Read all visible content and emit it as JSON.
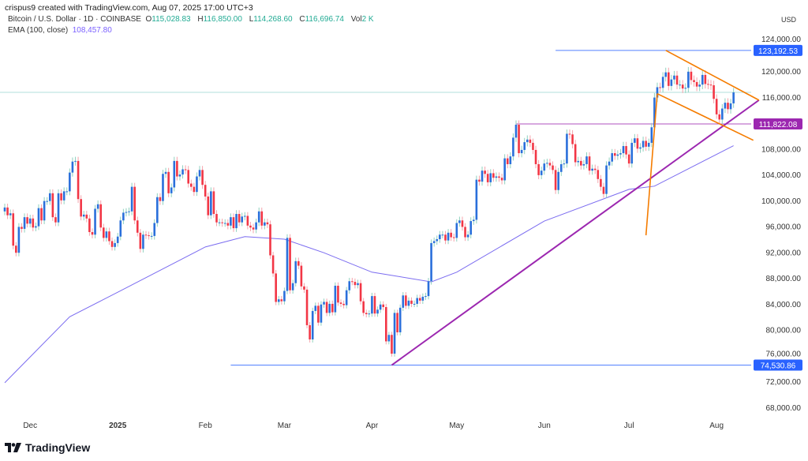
{
  "header": {
    "credit": "crispus9 created with TradingView.com, Aug 07, 2025 17:00 UTC+3",
    "symbol": "Bitcoin / U.S. Dollar · 1D · COINBASE",
    "open_label": "O",
    "open": "115,028.83",
    "high_label": "H",
    "high": "116,850.00",
    "low_label": "L",
    "low": "114,268.60",
    "close_label": "C",
    "close": "116,696.74",
    "vol_label": "Vol",
    "vol": "2 K",
    "ema_label": "EMA (100, close)",
    "ema_value": "108,457.80",
    "currency": "USD"
  },
  "logo": {
    "text": "TradingView"
  },
  "colors": {
    "up": "#2a6fdb",
    "down": "#f23645",
    "ema": "#7b6cf0",
    "trend": "#9c27b0",
    "pennant": "#f57c00",
    "level_blue": "#2962ff",
    "level_purple": "#9c27b0"
  },
  "chart_data": {
    "type": "candlestick",
    "start_date": "2024-11-22",
    "interval": "1D",
    "first_open": 98.3,
    "closes_k_usd": [
      98.9,
      97.7,
      98.0,
      93.0,
      91.9,
      95.9,
      95.6,
      97.4,
      96.4,
      97.2,
      95.8,
      96.0,
      98.8,
      96.9,
      99.9,
      99.9,
      101.1,
      97.4,
      96.6,
      101.1,
      100.0,
      101.4,
      101.4,
      104.3,
      106.0,
      106.1,
      100.2,
      97.5,
      97.8,
      97.2,
      95.1,
      94.7,
      98.7,
      99.4,
      95.8,
      94.2,
      95.2,
      93.7,
      92.8,
      93.4,
      94.4,
      96.9,
      98.1,
      98.2,
      98.3,
      102.1,
      96.9,
      95.0,
      92.5,
      94.7,
      94.6,
      94.5,
      94.5,
      96.5,
      100.5,
      99.9,
      104.1,
      104.4,
      101.1,
      102.0,
      106.1,
      103.7,
      104.0,
      104.8,
      104.7,
      102.6,
      102.1,
      101.3,
      103.7,
      104.7,
      102.4,
      100.6,
      97.7,
      101.4,
      97.9,
      96.6,
      96.6,
      96.5,
      96.5,
      96.1,
      97.4,
      95.7,
      97.9,
      96.6,
      97.5,
      97.6,
      96.1,
      95.8,
      95.5,
      96.6,
      98.3,
      96.1,
      96.6,
      96.3,
      91.5,
      88.7,
      84.3,
      84.7,
      84.4,
      86.0,
      94.2,
      86.1,
      87.2,
      90.6,
      89.9,
      86.7,
      86.2,
      80.7,
      78.5,
      82.9,
      83.7,
      81.1,
      83.9,
      84.3,
      82.6,
      84.0,
      82.7,
      86.8,
      84.2,
      84.0,
      83.8,
      86.1,
      87.5,
      87.4,
      86.9,
      87.2,
      84.4,
      82.6,
      82.4,
      82.5,
      85.2,
      82.5,
      83.1,
      83.9,
      83.5,
      78.2,
      79.2,
      76.3,
      82.6,
      79.6,
      83.4,
      85.3,
      83.7,
      84.5,
      84.0,
      84.0,
      84.9,
      84.5,
      85.1,
      85.2,
      87.5,
      93.4,
      93.7,
      94.0,
      94.7,
      94.7,
      93.8,
      95.0,
      94.3,
      94.2,
      96.5,
      96.9,
      95.9,
      94.3,
      94.7,
      96.8,
      97.0,
      103.2,
      102.9,
      104.6,
      104.1,
      102.8,
      104.2,
      103.5,
      103.7,
      103.5,
      103.1,
      106.5,
      105.6,
      106.8,
      109.7,
      111.7,
      107.3,
      107.8,
      109.0,
      109.4,
      108.9,
      107.8,
      105.6,
      103.9,
      104.6,
      105.7,
      105.8,
      105.4,
      104.7,
      101.6,
      104.4,
      105.6,
      105.7,
      110.3,
      110.2,
      108.7,
      105.9,
      106.1,
      105.4,
      105.6,
      106.8,
      104.6,
      104.9,
      104.7,
      103.3,
      102.1,
      101.0,
      105.4,
      106.0,
      107.3,
      106.9,
      107.1,
      107.3,
      108.4,
      107.1,
      105.7,
      108.9,
      109.6,
      108.0,
      108.2,
      109.2,
      108.3,
      108.9,
      111.3,
      115.9,
      117.5,
      117.4,
      119.1,
      119.8,
      117.7,
      118.7,
      119.3,
      117.9,
      117.9,
      117.3,
      117.4,
      119.9,
      118.6,
      118.3,
      117.6,
      117.9,
      119.4,
      118.0,
      117.9,
      117.8,
      115.7,
      113.3,
      112.5,
      114.2,
      115.1,
      114.1,
      115.0,
      116.7
    ],
    "ema_100": [
      {
        "date": "2024-11-22",
        "value": 71.8
      },
      {
        "date": "2024-12-15",
        "value": 82.0
      },
      {
        "date": "2025-01-01",
        "value": 85.8
      },
      {
        "date": "2025-02-01",
        "value": 92.8
      },
      {
        "date": "2025-02-15",
        "value": 94.4
      },
      {
        "date": "2025-03-01",
        "value": 94.0
      },
      {
        "date": "2025-03-15",
        "value": 91.9
      },
      {
        "date": "2025-04-01",
        "value": 88.9
      },
      {
        "date": "2025-04-22",
        "value": 87.4
      },
      {
        "date": "2025-05-01",
        "value": 88.9
      },
      {
        "date": "2025-06-01",
        "value": 96.8
      },
      {
        "date": "2025-07-01",
        "value": 101.7
      },
      {
        "date": "2025-07-10",
        "value": 102.2
      },
      {
        "date": "2025-08-07",
        "value": 108.46
      }
    ],
    "y_ticks": [
      "124,000.00",
      "120,000.00",
      "116,000.00",
      "108,000.00",
      "104,000.00",
      "100,000.00",
      "96,000.00",
      "92,000.00",
      "88,000.00",
      "84,000.00",
      "80,000.00",
      "76,000.00",
      "72,000.00",
      "68,000.00"
    ],
    "y_tick_values": [
      124000,
      120000,
      116000,
      108000,
      104000,
      100000,
      96000,
      92000,
      88000,
      84000,
      80000,
      76000,
      72000,
      68000
    ],
    "x_ticks": [
      {
        "label": "Dec",
        "date": "2024-12-01",
        "bold": false
      },
      {
        "label": "2025",
        "date": "2025-01-01",
        "bold": true
      },
      {
        "label": "Feb",
        "date": "2025-02-01",
        "bold": false
      },
      {
        "label": "Mar",
        "date": "2025-03-01",
        "bold": false
      },
      {
        "label": "Apr",
        "date": "2025-04-01",
        "bold": false
      },
      {
        "label": "May",
        "date": "2025-05-01",
        "bold": false
      },
      {
        "label": "Jun",
        "date": "2025-06-01",
        "bold": false
      },
      {
        "label": "Jul",
        "date": "2025-07-01",
        "bold": false
      },
      {
        "label": "Aug",
        "date": "2025-08-01",
        "bold": false
      }
    ],
    "price_levels": [
      {
        "label": "123,192.53",
        "value": 123192.53,
        "from": "2025-06-05",
        "color": "#2962ff"
      },
      {
        "label": "111,822.08",
        "value": 111822.08,
        "from": "2025-05-22",
        "color": "#9c27b0"
      },
      {
        "label": "74,530.86",
        "value": 74530.86,
        "from": "2025-02-10",
        "color": "#2962ff"
      }
    ],
    "last_price_line": 116696.74,
    "trendlines": [
      {
        "name": "support-trendline",
        "from": {
          "date": "2025-04-08",
          "price": 74530
        },
        "to": {
          "date": "2025-08-16",
          "price": 115500
        },
        "color": "#9c27b0"
      },
      {
        "name": "pennant-upper",
        "from": {
          "date": "2025-07-14",
          "price": 123192
        },
        "to": {
          "date": "2025-08-16",
          "price": 115500
        },
        "color": "#f57c00"
      },
      {
        "name": "pennant-lower",
        "from": {
          "date": "2025-07-11",
          "price": 116500
        },
        "to": {
          "date": "2025-08-14",
          "price": 109300
        },
        "color": "#f57c00"
      },
      {
        "name": "flag-pole",
        "from": {
          "date": "2025-07-07",
          "price": 94600
        },
        "to": {
          "date": "2025-07-11",
          "price": 116500
        },
        "color": "#f57c00"
      }
    ]
  }
}
